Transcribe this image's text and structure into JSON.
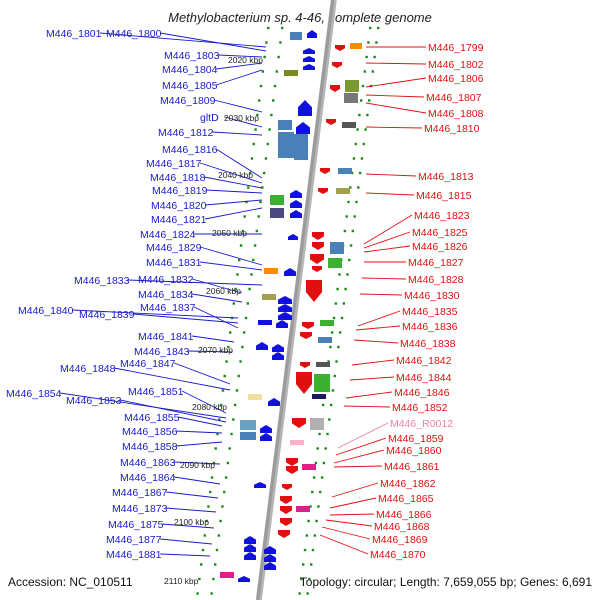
{
  "title": "Methylobacterium sp. 4-46, complete genome",
  "accession": "Accession: NC_010511",
  "topology": "Topology: circular; Length: 7,659,055 bp; Genes: 6,691",
  "scale_labels": [
    "2020 kbp",
    "2030 kbp",
    "2040 kbp",
    "2050 kbp",
    "2060 kbp",
    "2070 kbp",
    "2080 kbp",
    "2090 kbp",
    "2100 kbp",
    "2110 kbp"
  ],
  "left_genes": [
    "M446_1801",
    "M446_1800",
    "M446_1803",
    "M446_1804",
    "M446_1805",
    "M446_1809",
    "gltD",
    "M446_1812",
    "M446_1816",
    "M446_1817",
    "M446_1818",
    "M446_1819",
    "M446_1820",
    "M446_1821",
    "M446_1824",
    "M446_1829",
    "M446_1831",
    "M446_1833",
    "M446_1832",
    "M446_1834",
    "M446_1840",
    "M446_1839",
    "M446_1837",
    "M446_1841",
    "M446_1843",
    "M446_1848",
    "M446_1847",
    "M446_1854",
    "M446_1853",
    "M446_1851",
    "M446_1855",
    "M446_1856",
    "M446_1858",
    "M446_1863",
    "M446_1864",
    "M446_1867",
    "M446_1873",
    "M446_1875",
    "M446_1877",
    "M446_1881"
  ],
  "right_genes": [
    "M446_1799",
    "M446_1802",
    "M446_1806",
    "M446_1807",
    "M446_1808",
    "M446_1810",
    "M446_1813",
    "M446_1815",
    "M446_1823",
    "M446_1825",
    "M446_1826",
    "M446_1827",
    "M446_1828",
    "M446_1830",
    "M446_1835",
    "M446_1836",
    "M446_1838",
    "M446_1842",
    "M446_1844",
    "M446_1846",
    "M446_1852",
    "M446_R0012",
    "M446_1859",
    "M446_1860",
    "M446_1861",
    "M446_1862",
    "M446_1865",
    "M446_1866",
    "M446_1868",
    "M446_1869",
    "M446_1870"
  ],
  "colors": {
    "left_label": "#1a1acc",
    "right_label": "#e01010",
    "rna_label": "#f080b0",
    "backbone": "#9a9a9a",
    "tick": "#1a8a1a"
  }
}
